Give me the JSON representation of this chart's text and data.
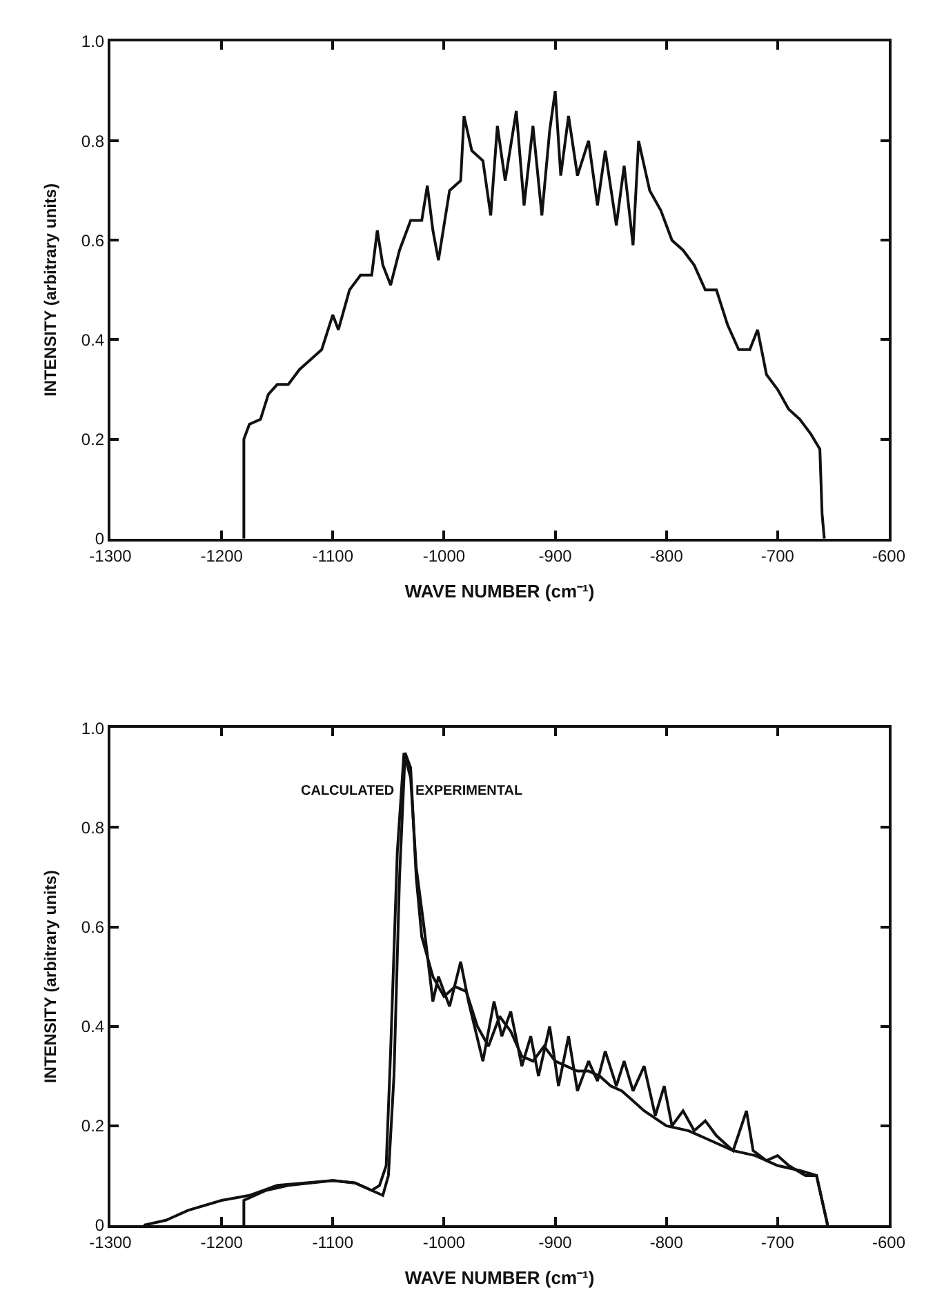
{
  "chart_data": [
    {
      "type": "line",
      "xlabel": "WAVE NUMBER (cm⁻¹)",
      "ylabel": "INTENSITY (arbitrary units)",
      "xlim": [
        -1300,
        -600
      ],
      "xticks": [
        -1300,
        -1200,
        -1100,
        -1000,
        -900,
        -800,
        -700,
        -600
      ],
      "ylim": [
        0,
        1.0
      ],
      "yticks": [
        {
          "value": 0,
          "label": "0"
        },
        {
          "value": 0.2,
          "label": "0.2"
        },
        {
          "value": 0.4,
          "label": "0.4"
        },
        {
          "value": 0.6,
          "label": "0.6"
        },
        {
          "value": 0.8,
          "label": "0.8"
        },
        {
          "value": 1.0,
          "label": "1.0"
        }
      ],
      "legend": false,
      "marker": "none",
      "line_style": "solid",
      "series": [
        {
          "color": "#111111",
          "x": [
            -1180,
            -1180,
            -1175,
            -1165,
            -1158,
            -1150,
            -1140,
            -1130,
            -1120,
            -1110,
            -1100,
            -1095,
            -1085,
            -1075,
            -1065,
            -1060,
            -1055,
            -1048,
            -1040,
            -1030,
            -1020,
            -1015,
            -1010,
            -1005,
            -995,
            -985,
            -982,
            -975,
            -965,
            -958,
            -952,
            -945,
            -935,
            -928,
            -920,
            -912,
            -905,
            -900,
            -895,
            -888,
            -880,
            -870,
            -862,
            -855,
            -845,
            -838,
            -830,
            -825,
            -815,
            -805,
            -795,
            -785,
            -775,
            -765,
            -755,
            -745,
            -735,
            -725,
            -718,
            -710,
            -700,
            -690,
            -680,
            -670,
            -662,
            -660,
            -658
          ],
          "values": [
            0,
            0.2,
            0.23,
            0.24,
            0.29,
            0.31,
            0.31,
            0.34,
            0.36,
            0.38,
            0.45,
            0.42,
            0.5,
            0.53,
            0.53,
            0.62,
            0.55,
            0.51,
            0.58,
            0.64,
            0.64,
            0.71,
            0.62,
            0.56,
            0.7,
            0.72,
            0.85,
            0.78,
            0.76,
            0.65,
            0.83,
            0.72,
            0.86,
            0.67,
            0.83,
            0.65,
            0.82,
            0.9,
            0.73,
            0.85,
            0.73,
            0.8,
            0.67,
            0.78,
            0.63,
            0.75,
            0.59,
            0.8,
            0.7,
            0.66,
            0.6,
            0.58,
            0.55,
            0.5,
            0.5,
            0.43,
            0.38,
            0.38,
            0.42,
            0.33,
            0.3,
            0.26,
            0.24,
            0.21,
            0.18,
            0.05,
            0
          ]
        }
      ]
    },
    {
      "type": "line",
      "xlabel": "WAVE NUMBER (cm⁻¹)",
      "ylabel": "INTENSITY (arbitrary units)",
      "xlim": [
        -1300,
        -600
      ],
      "xticks": [
        -1300,
        -1200,
        -1100,
        -1000,
        -900,
        -800,
        -700,
        -600
      ],
      "ylim": [
        0,
        1.0
      ],
      "yticks": [
        {
          "value": 0,
          "label": "0"
        },
        {
          "value": 0.2,
          "label": "0.2"
        },
        {
          "value": 0.4,
          "label": "0.4"
        },
        {
          "value": 0.6,
          "label": "0.6"
        },
        {
          "value": 0.8,
          "label": "0.8"
        },
        {
          "value": 1.0,
          "label": "1.0"
        }
      ],
      "legend": false,
      "marker": "none",
      "line_style": "solid",
      "series": [
        {
          "name": "CALCULATED",
          "color": "#111111",
          "x": [
            -1270,
            -1250,
            -1230,
            -1200,
            -1175,
            -1150,
            -1125,
            -1100,
            -1080,
            -1065,
            -1055,
            -1050,
            -1045,
            -1040,
            -1035,
            -1030,
            -1025,
            -1020,
            -1010,
            -1000,
            -990,
            -980,
            -970,
            -960,
            -950,
            -940,
            -930,
            -920,
            -910,
            -900,
            -890,
            -880,
            -870,
            -860,
            -850,
            -840,
            -830,
            -820,
            -800,
            -780,
            -760,
            -740,
            -720,
            -700,
            -680,
            -665,
            -660,
            -655
          ],
          "values": [
            0,
            0.01,
            0.03,
            0.05,
            0.06,
            0.08,
            0.085,
            0.09,
            0.085,
            0.07,
            0.06,
            0.1,
            0.3,
            0.7,
            0.95,
            0.92,
            0.7,
            0.58,
            0.5,
            0.46,
            0.48,
            0.47,
            0.4,
            0.36,
            0.42,
            0.39,
            0.34,
            0.33,
            0.36,
            0.33,
            0.32,
            0.31,
            0.31,
            0.3,
            0.28,
            0.27,
            0.25,
            0.23,
            0.2,
            0.19,
            0.17,
            0.15,
            0.14,
            0.12,
            0.11,
            0.1,
            0.05,
            0
          ]
        },
        {
          "name": "EXPERIMENTAL",
          "color": "#111111",
          "x": [
            -1180,
            -1180,
            -1160,
            -1140,
            -1120,
            -1100,
            -1080,
            -1065,
            -1058,
            -1052,
            -1048,
            -1042,
            -1036,
            -1030,
            -1025,
            -1018,
            -1010,
            -1005,
            -995,
            -985,
            -978,
            -965,
            -955,
            -948,
            -940,
            -930,
            -922,
            -915,
            -905,
            -897,
            -888,
            -880,
            -870,
            -862,
            -855,
            -845,
            -838,
            -830,
            -820,
            -810,
            -802,
            -795,
            -785,
            -775,
            -765,
            -755,
            -740,
            -728,
            -722,
            -710,
            -700,
            -690,
            -675,
            -665,
            -660,
            -655
          ],
          "values": [
            0,
            0.05,
            0.07,
            0.08,
            0.085,
            0.09,
            0.085,
            0.07,
            0.08,
            0.12,
            0.35,
            0.75,
            0.95,
            0.9,
            0.72,
            0.6,
            0.45,
            0.5,
            0.44,
            0.53,
            0.45,
            0.33,
            0.45,
            0.38,
            0.43,
            0.32,
            0.38,
            0.3,
            0.4,
            0.28,
            0.38,
            0.27,
            0.33,
            0.29,
            0.35,
            0.28,
            0.33,
            0.27,
            0.32,
            0.22,
            0.28,
            0.2,
            0.23,
            0.19,
            0.21,
            0.18,
            0.15,
            0.23,
            0.15,
            0.13,
            0.14,
            0.12,
            0.1,
            0.1,
            0.05,
            0
          ]
        }
      ]
    }
  ]
}
